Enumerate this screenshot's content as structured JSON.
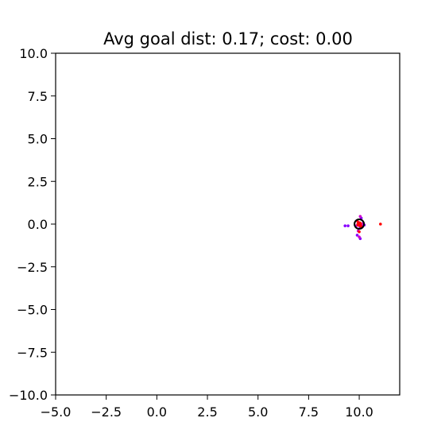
{
  "chart_data": {
    "type": "scatter",
    "title": "Avg goal dist: 0.17; cost: 0.00",
    "xlabel": "",
    "ylabel": "",
    "xlim": [
      -5,
      12
    ],
    "ylim": [
      -10,
      10
    ],
    "grid": false,
    "x_ticks": [
      "−5.0",
      "−2.5",
      "0.0",
      "2.5",
      "5.0",
      "7.5",
      "10.0"
    ],
    "y_ticks": [
      "10.0",
      "7.5",
      "5.0",
      "2.5",
      "0.0",
      "−2.5",
      "−5.0",
      "−7.5",
      "−10.0"
    ],
    "goal": {
      "x": 10,
      "y": 0,
      "color": "#000000"
    },
    "series": [
      {
        "color": "#8800ff",
        "points": [
          [
            9.3,
            -0.1
          ],
          [
            9.45,
            -0.1
          ],
          [
            10.25,
            -0.05
          ],
          [
            9.9,
            -0.65
          ],
          [
            10.05,
            -0.85
          ],
          [
            10.1,
            0.35
          ],
          [
            9.95,
            0.1
          ],
          [
            10.05,
            -0.2
          ]
        ]
      },
      {
        "color": "#cc00cc",
        "points": [
          [
            9.85,
            -0.1
          ],
          [
            10.15,
            -0.1
          ],
          [
            10.05,
            0.45
          ],
          [
            9.95,
            -0.4
          ],
          [
            10.0,
            -0.75
          ],
          [
            10.2,
            0.05
          ]
        ]
      },
      {
        "color": "#ff0000",
        "points": [
          [
            11.05,
            0.0
          ],
          [
            10.0,
            0.0
          ],
          [
            9.95,
            -0.05
          ],
          [
            10.05,
            0.05
          ],
          [
            10.0,
            -0.45
          ],
          [
            9.9,
            0.2
          ],
          [
            10.1,
            -0.15
          ]
        ]
      }
    ]
  }
}
